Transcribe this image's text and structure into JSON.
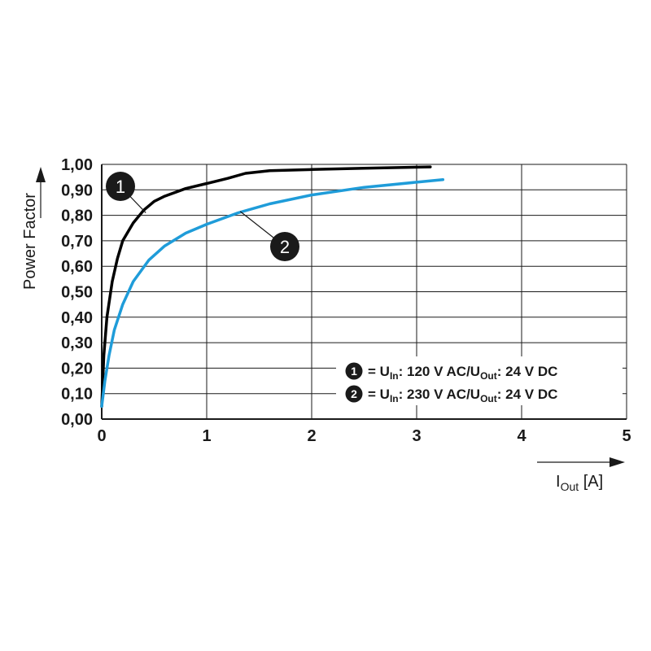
{
  "chart_data": {
    "type": "line",
    "ylabel": "Power Factor",
    "xlabel_main": "I",
    "xlabel_sub": "Out",
    "xlabel_unit": " [A]",
    "xlim": [
      0,
      5
    ],
    "ylim": [
      0,
      1
    ],
    "xticks": [
      "0",
      "1",
      "2",
      "3",
      "4",
      "5"
    ],
    "yticks": [
      "0,00",
      "0,10",
      "0,20",
      "0,30",
      "0,40",
      "0,50",
      "0,60",
      "0,70",
      "0,80",
      "0,90",
      "1,00"
    ],
    "grid": true,
    "series": [
      {
        "marker": "1",
        "color": "#000000",
        "points": [
          [
            0.0,
            0.05
          ],
          [
            0.02,
            0.25
          ],
          [
            0.05,
            0.4
          ],
          [
            0.1,
            0.54
          ],
          [
            0.15,
            0.63
          ],
          [
            0.2,
            0.7
          ],
          [
            0.3,
            0.77
          ],
          [
            0.4,
            0.82
          ],
          [
            0.5,
            0.855
          ],
          [
            0.6,
            0.875
          ],
          [
            0.8,
            0.905
          ],
          [
            1.0,
            0.925
          ],
          [
            1.2,
            0.945
          ],
          [
            1.37,
            0.965
          ],
          [
            1.6,
            0.975
          ],
          [
            2.0,
            0.98
          ],
          [
            2.5,
            0.985
          ],
          [
            3.13,
            0.99
          ]
        ]
      },
      {
        "marker": "2",
        "color": "#1f9cd9",
        "points": [
          [
            0.0,
            0.05
          ],
          [
            0.03,
            0.15
          ],
          [
            0.07,
            0.25
          ],
          [
            0.12,
            0.35
          ],
          [
            0.2,
            0.45
          ],
          [
            0.3,
            0.54
          ],
          [
            0.45,
            0.625
          ],
          [
            0.6,
            0.68
          ],
          [
            0.8,
            0.73
          ],
          [
            1.0,
            0.765
          ],
          [
            1.3,
            0.81
          ],
          [
            1.6,
            0.845
          ],
          [
            2.0,
            0.88
          ],
          [
            2.5,
            0.91
          ],
          [
            3.0,
            0.93
          ],
          [
            3.25,
            0.94
          ]
        ]
      }
    ],
    "legend": {
      "placement": "bottom-right",
      "entries": [
        {
          "marker": "1",
          "pre": "= U",
          "sub1": "In",
          "mid": ": 120 V AC/U",
          "sub2": "Out",
          "post": ": 24 V DC"
        },
        {
          "marker": "2",
          "pre": "= U",
          "sub1": "In",
          "mid": ": 230 V AC/U",
          "sub2": "Out",
          "post": ": 24 V DC"
        }
      ]
    }
  }
}
